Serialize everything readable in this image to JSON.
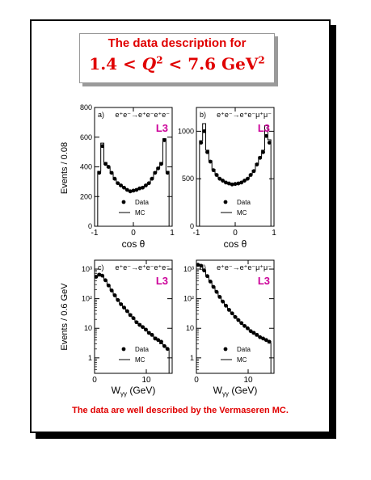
{
  "slide": {
    "title_line1": "The data description for",
    "title_line2": {
      "lower": "1.4",
      "variable": "Q",
      "power": "2",
      "upper": "7.6",
      "unit": "GeV",
      "unit_power": "2"
    },
    "footer": "The data are well described by the Vermaseren MC.",
    "colors": {
      "title": "#e00000",
      "footer": "#e00000",
      "l3_label": "#cc0099",
      "frame": "#000000"
    }
  },
  "shared": {
    "y_label_top": "Events / 0.08",
    "y_label_bottom": "Events / 0.6 GeV",
    "x_label_top": "cos θ",
    "x_label_bottom": "W",
    "x_label_bottom_sub": "γγ",
    "x_label_bottom_unit": "(GeV)",
    "legend_data": "Data",
    "legend_mc": "MC",
    "experiment": "L3"
  },
  "chart_data": [
    {
      "panel": "a)",
      "type": "scatter",
      "channel": "e⁺e⁻→e⁺e⁻e⁺e⁻",
      "x_scale": "linear",
      "y_scale": "linear",
      "xlim": [
        -1,
        1
      ],
      "ylim": [
        0,
        800
      ],
      "x_ticks": [
        -1,
        0,
        1
      ],
      "y_ticks": [
        0,
        200,
        400,
        600,
        800
      ],
      "bin_width": 0.08,
      "x": [
        -0.88,
        -0.8,
        -0.72,
        -0.64,
        -0.56,
        -0.48,
        -0.4,
        -0.32,
        -0.24,
        -0.16,
        -0.08,
        0.0,
        0.08,
        0.16,
        0.24,
        0.32,
        0.4,
        0.48,
        0.56,
        0.64,
        0.72,
        0.8,
        0.88
      ],
      "series": [
        {
          "name": "Data",
          "values": [
            360,
            540,
            420,
            400,
            360,
            320,
            290,
            275,
            260,
            245,
            235,
            240,
            245,
            255,
            260,
            275,
            290,
            320,
            360,
            390,
            420,
            580,
            360
          ]
        },
        {
          "name": "MC",
          "values": [
            370,
            560,
            430,
            395,
            355,
            315,
            285,
            270,
            258,
            245,
            235,
            238,
            245,
            255,
            262,
            275,
            290,
            325,
            365,
            395,
            430,
            590,
            370
          ]
        }
      ],
      "legend": "bottom-center"
    },
    {
      "panel": "b)",
      "type": "scatter",
      "channel": "e⁺e⁻→e⁺e⁻μ⁺μ⁻",
      "x_scale": "linear",
      "y_scale": "linear",
      "xlim": [
        -1,
        1
      ],
      "ylim": [
        0,
        1250
      ],
      "x_ticks": [
        -1,
        0,
        1
      ],
      "y_ticks": [
        0,
        500,
        1000
      ],
      "bin_width": 0.08,
      "x": [
        -0.88,
        -0.8,
        -0.72,
        -0.64,
        -0.56,
        -0.48,
        -0.4,
        -0.32,
        -0.24,
        -0.16,
        -0.08,
        0.0,
        0.08,
        0.16,
        0.24,
        0.32,
        0.4,
        0.48,
        0.56,
        0.64,
        0.72,
        0.8,
        0.88
      ],
      "series": [
        {
          "name": "Data",
          "values": [
            880,
            1000,
            780,
            680,
            590,
            540,
            500,
            480,
            460,
            450,
            440,
            445,
            450,
            460,
            480,
            500,
            540,
            580,
            650,
            720,
            780,
            950,
            880
          ]
        },
        {
          "name": "MC",
          "values": [
            900,
            1080,
            800,
            690,
            600,
            545,
            505,
            480,
            462,
            450,
            440,
            444,
            452,
            462,
            480,
            505,
            545,
            590,
            660,
            730,
            800,
            1060,
            910
          ]
        }
      ],
      "legend": "bottom-center"
    },
    {
      "panel": "c)",
      "type": "scatter",
      "channel": "e⁺e⁻→e⁺e⁻e⁺e⁻",
      "x_scale": "linear",
      "y_scale": "log",
      "xlim": [
        0,
        15
      ],
      "ylim": [
        0.3,
        2000
      ],
      "x_ticks": [
        0,
        10
      ],
      "y_ticks": [
        1,
        10,
        100,
        1000
      ],
      "y_tick_labels": [
        "1",
        "10",
        "10²",
        "10³"
      ],
      "bin_width": 0.6,
      "x": [
        0.3,
        0.9,
        1.5,
        2.1,
        2.7,
        3.3,
        3.9,
        4.5,
        5.1,
        5.7,
        6.3,
        6.9,
        7.5,
        8.1,
        8.7,
        9.3,
        9.9,
        10.5,
        11.1,
        11.7,
        12.3,
        12.9,
        13.5,
        14.1
      ],
      "series": [
        {
          "name": "Data",
          "values": [
            550,
            650,
            600,
            420,
            280,
            190,
            130,
            90,
            65,
            50,
            38,
            28,
            22,
            16,
            13,
            11,
            9,
            7,
            6,
            4.5,
            4,
            3.5,
            2.5,
            2
          ]
        },
        {
          "name": "MC",
          "values": [
            580,
            680,
            620,
            430,
            290,
            195,
            135,
            95,
            68,
            52,
            39,
            30,
            23,
            17,
            14,
            11.5,
            9.5,
            7.5,
            6,
            5,
            4,
            3,
            2.5,
            2
          ]
        }
      ],
      "legend": "bottom-center"
    },
    {
      "panel": "d)",
      "type": "scatter",
      "channel": "e⁺e⁻→e⁺e⁻μ⁺μ⁻",
      "x_scale": "linear",
      "y_scale": "log",
      "xlim": [
        0,
        15
      ],
      "ylim": [
        0.3,
        2000
      ],
      "x_ticks": [
        0,
        10
      ],
      "y_ticks": [
        1,
        10,
        100,
        1000
      ],
      "y_tick_labels": [
        "1",
        "10",
        "10²",
        "10³"
      ],
      "bin_width": 0.6,
      "x": [
        0.3,
        0.9,
        1.5,
        2.1,
        2.7,
        3.3,
        3.9,
        4.5,
        5.1,
        5.7,
        6.3,
        6.9,
        7.5,
        8.1,
        8.7,
        9.3,
        9.9,
        10.5,
        11.1,
        11.7,
        12.3,
        12.9,
        13.5,
        14.1
      ],
      "series": [
        {
          "name": "Data",
          "values": [
            1400,
            1300,
            900,
            580,
            380,
            250,
            170,
            115,
            80,
            58,
            42,
            32,
            24,
            19,
            15,
            12,
            10,
            8,
            7,
            6,
            5,
            4.5,
            4,
            3.5
          ]
        },
        {
          "name": "MC",
          "values": [
            1450,
            1320,
            920,
            600,
            390,
            255,
            172,
            118,
            82,
            60,
            44,
            33,
            25,
            19.5,
            15.5,
            12.5,
            10,
            8,
            6.5,
            5.5,
            5,
            4.5,
            3.8,
            3.2
          ]
        }
      ],
      "legend": "bottom-center"
    }
  ]
}
